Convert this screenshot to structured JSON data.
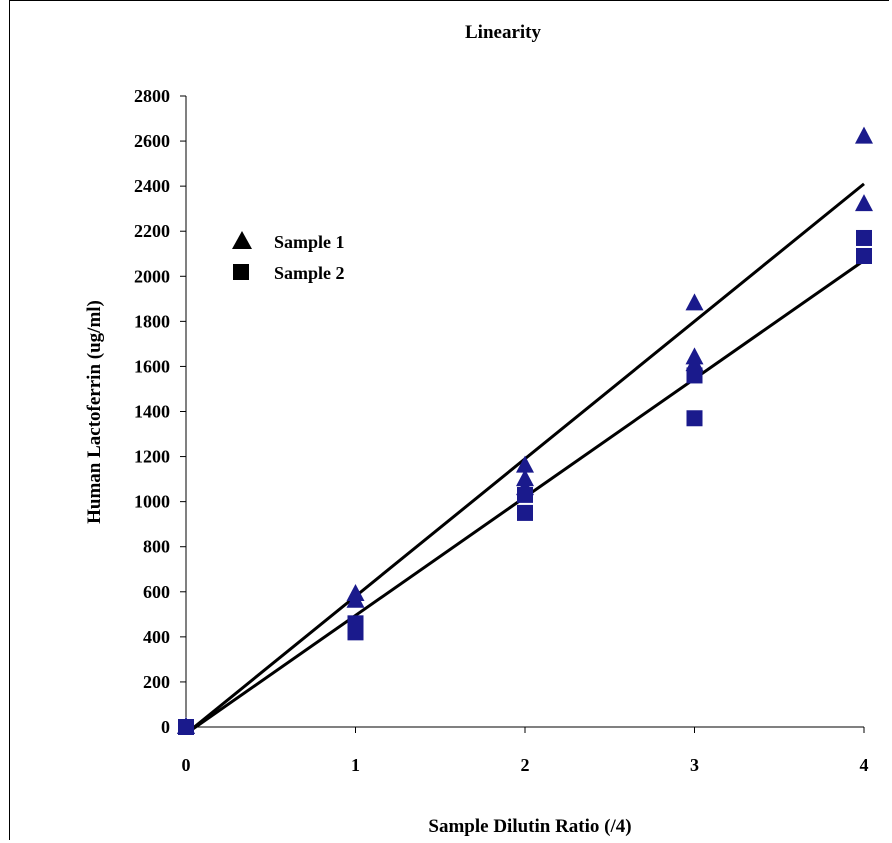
{
  "chart_data": {
    "type": "scatter",
    "title": "Linearity",
    "xlabel": "Sample Dilutin Ratio (/4)",
    "ylabel": "Human Lactoferrin (ug/ml)",
    "xlim": [
      0,
      4
    ],
    "ylim": [
      0,
      2800
    ],
    "xticks": [
      "0",
      "1",
      "2",
      "3",
      "4"
    ],
    "yticks": [
      "0",
      "200",
      "400",
      "600",
      "800",
      "1000",
      "1200",
      "1400",
      "1600",
      "1800",
      "2000",
      "2200",
      "2400",
      "2600",
      "2800"
    ],
    "grid": false,
    "legend_position": "left",
    "marker_color": "#1a1a8c",
    "series": [
      {
        "name": "Sample 1",
        "marker": "triangle",
        "points": [
          [
            0,
            0
          ],
          [
            0,
            0
          ],
          [
            1,
            590
          ],
          [
            1,
            560
          ],
          [
            2,
            1160
          ],
          [
            2,
            1100
          ],
          [
            2,
            1060
          ],
          [
            3,
            1880
          ],
          [
            3,
            1640
          ],
          [
            3,
            1610
          ],
          [
            4,
            2620
          ],
          [
            4,
            2320
          ]
        ],
        "fit": [
          [
            0,
            -30
          ],
          [
            4,
            2410
          ]
        ]
      },
      {
        "name": "Sample 2",
        "marker": "square",
        "points": [
          [
            0,
            0
          ],
          [
            0,
            0
          ],
          [
            1,
            460
          ],
          [
            1,
            420
          ],
          [
            2,
            1030
          ],
          [
            2,
            950
          ],
          [
            3,
            1560
          ],
          [
            3,
            1370
          ],
          [
            4,
            2170
          ],
          [
            4,
            2090
          ]
        ],
        "fit": [
          [
            0,
            -30
          ],
          [
            4,
            2070
          ]
        ]
      }
    ]
  }
}
